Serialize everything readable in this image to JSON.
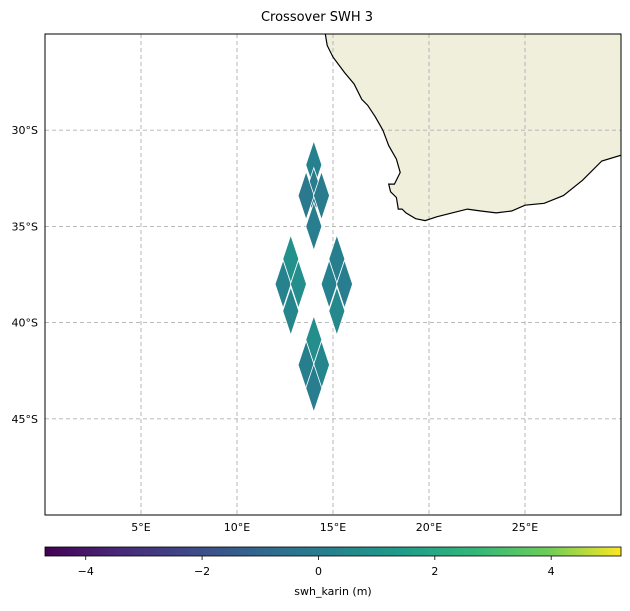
{
  "chart_data": {
    "type": "scatter",
    "title": "Crossover SWH 3",
    "projection": "PlateCarree map",
    "xlim": [
      0,
      30
    ],
    "ylim": [
      -50,
      -25
    ],
    "x_ticks": [
      5,
      10,
      15,
      20,
      25
    ],
    "x_tick_labels": [
      "5°E",
      "10°E",
      "15°E",
      "20°E",
      "25°E"
    ],
    "y_ticks": [
      -30,
      -35,
      -40,
      -45
    ],
    "y_tick_labels": [
      "30°S",
      "35°S",
      "40°S",
      "45°S"
    ],
    "grid": true,
    "grid_style": "dashed",
    "land_color": "#efefdb",
    "coastline_color": "#000000",
    "coastline": [
      [
        14.6,
        -25.0
      ],
      [
        14.7,
        -25.6
      ],
      [
        15.0,
        -26.2
      ],
      [
        15.6,
        -27.0
      ],
      [
        16.1,
        -27.6
      ],
      [
        16.5,
        -28.4
      ],
      [
        16.8,
        -28.7
      ],
      [
        17.2,
        -29.3
      ],
      [
        17.6,
        -30.0
      ],
      [
        17.9,
        -30.8
      ],
      [
        18.3,
        -31.5
      ],
      [
        18.5,
        -32.2
      ],
      [
        18.2,
        -32.8
      ],
      [
        17.9,
        -32.8
      ],
      [
        18.0,
        -33.2
      ],
      [
        18.3,
        -33.5
      ],
      [
        18.4,
        -34.1
      ],
      [
        18.6,
        -34.1
      ],
      [
        18.8,
        -34.3
      ],
      [
        19.3,
        -34.6
      ],
      [
        19.8,
        -34.7
      ],
      [
        20.4,
        -34.5
      ],
      [
        21.2,
        -34.3
      ],
      [
        22.0,
        -34.1
      ],
      [
        22.7,
        -34.2
      ],
      [
        23.5,
        -34.3
      ],
      [
        24.3,
        -34.2
      ],
      [
        25.0,
        -33.9
      ],
      [
        26.0,
        -33.8
      ],
      [
        27.0,
        -33.4
      ],
      [
        28.0,
        -32.6
      ],
      [
        29.0,
        -31.6
      ],
      [
        30.0,
        -31.3
      ]
    ],
    "point_marker": "diamond",
    "series": [
      {
        "x": [
          14.0,
          14.0,
          13.6,
          14.4,
          14.0,
          12.8,
          12.4,
          13.2,
          12.8,
          15.2,
          14.8,
          15.6,
          15.2,
          14.0,
          13.6,
          14.4,
          14.0
        ],
        "y": [
          -31.8,
          -33.2,
          -33.4,
          -33.4,
          -35.0,
          -36.7,
          -38.0,
          -38.0,
          -39.4,
          -36.7,
          -38.0,
          -38.0,
          -39.4,
          -40.9,
          -42.2,
          -42.2,
          -43.4
        ],
        "values": [
          0.2,
          -0.1,
          -0.2,
          -0.1,
          0.0,
          0.9,
          0.3,
          0.8,
          0.4,
          0.1,
          0.2,
          0.0,
          0.5,
          0.8,
          0.1,
          0.4,
          0.0
        ]
      }
    ],
    "colorbar": {
      "label": "swh_karin (m)",
      "min": -4.7,
      "max": 5.2,
      "ticks": [
        -4,
        -2,
        0,
        2,
        4
      ],
      "tick_labels": [
        "−4",
        "−2",
        "0",
        "2",
        "4"
      ],
      "colormap": "viridis"
    }
  }
}
